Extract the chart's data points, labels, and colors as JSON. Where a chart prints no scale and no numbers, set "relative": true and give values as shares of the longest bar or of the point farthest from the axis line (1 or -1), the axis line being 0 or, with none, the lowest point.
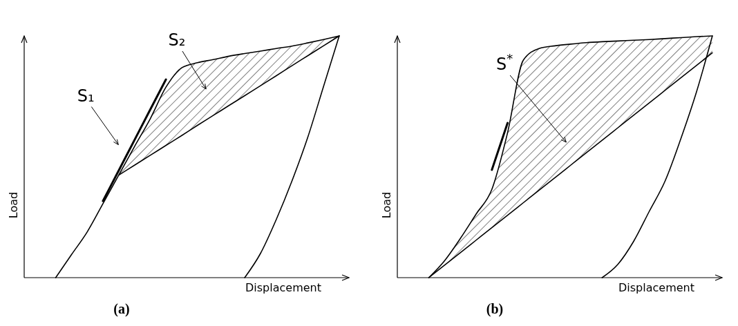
{
  "chart_data": [
    {
      "type": "line",
      "relative": true,
      "title": "(a)",
      "xlabel": "Displacement",
      "ylabel": "Load",
      "annotations": [
        "S₁",
        "S₂"
      ],
      "categories": [
        null,
        null,
        null,
        null,
        null,
        null,
        null,
        null,
        null,
        null,
        null,
        null,
        null,
        null,
        null,
        null,
        null,
        null,
        null,
        null,
        null
      ],
      "series": [
        {
          "color": "#000000",
          "values": [
            null,
            null,
            0,
            0.095,
            0.189,
            0.306,
            0.424,
            0.542,
            0.657,
            0.788,
            0.868,
            0.889,
            0.902,
            0.916,
            0.927,
            0.937,
            0.948,
            0.958,
            0.971,
            0.985,
            1
          ]
        },
        {
          "color": "#000000",
          "values": [
            null,
            null,
            null,
            null,
            null,
            null,
            null,
            null,
            null,
            null,
            null,
            null,
            null,
            null,
            0,
            0.1,
            0.24,
            0.4,
            0.58,
            0.79,
            1
          ]
        },
        {
          "color": "#000000",
          "values": [
            null,
            null,
            null,
            null,
            null,
            0.317,
            0.443,
            0.569,
            0.695,
            0.82,
            null,
            null,
            null,
            null,
            null,
            null,
            null,
            null,
            null,
            null,
            null
          ]
        },
        {
          "color": "#000000",
          "values": [
            null,
            null,
            null,
            null,
            null,
            null,
            0.424,
            0.465,
            0.506,
            0.547,
            0.588,
            0.63,
            0.671,
            0.712,
            0.753,
            0.794,
            0.835,
            0.877,
            0.918,
            0.959,
            1
          ],
          "lower": [
            null,
            null,
            null,
            null,
            null,
            null,
            0.424,
            0.465,
            0.506,
            0.547,
            0.588,
            0.63,
            0.671,
            0.712,
            0.753,
            0.794,
            0.835,
            0.877,
            0.918,
            0.959,
            1
          ],
          "upper": [
            null,
            null,
            null,
            null,
            null,
            null,
            0.424,
            0.542,
            0.657,
            0.788,
            0.868,
            0.889,
            0.902,
            0.916,
            0.927,
            0.937,
            0.948,
            0.958,
            0.971,
            0.985,
            1
          ]
        }
      ]
    },
    {
      "type": "line",
      "relative": true,
      "title": "(b)",
      "xlabel": "Displacement",
      "ylabel": "Load",
      "annotations": [
        "S$^{*}$"
      ],
      "categories": [
        null,
        null,
        null,
        null,
        null,
        null,
        null,
        null,
        null,
        null,
        null,
        null,
        null,
        null,
        null,
        null,
        null,
        null,
        null,
        null,
        null
      ],
      "series": [
        {
          "color": "#000000",
          "values": [
            null,
            null,
            0,
            0.07,
            0.162,
            0.263,
            0.365,
            0.6,
            0.9,
            0.948,
            0.959,
            0.966,
            0.972,
            0.976,
            0.979,
            0.982,
            0.985,
            0.989,
            0.993,
            0.997,
            1
          ]
        },
        {
          "color": "#000000",
          "values": [
            null,
            null,
            null,
            null,
            null,
            null,
            null,
            null,
            null,
            null,
            null,
            null,
            null,
            0,
            0.055,
            0.15,
            0.275,
            0.4,
            0.575,
            0.77,
            1
          ]
        },
        {
          "color": "#000000",
          "values": [
            null,
            null,
            null,
            null,
            null,
            null,
            0.446,
            0.64,
            null,
            null,
            null,
            null,
            null,
            null,
            null,
            null,
            null,
            null,
            null,
            null,
            null
          ]
        },
        {
          "color": "#000000",
          "values": [
            null,
            null,
            0,
            0.052,
            0.103,
            0.155,
            0.207,
            0.258,
            0.31,
            0.362,
            0.413,
            0.465,
            0.517,
            0.568,
            0.62,
            0.672,
            0.723,
            0.775,
            0.827,
            0.878,
            0.93
          ],
          "lower": [
            null,
            null,
            0,
            0.052,
            0.103,
            0.155,
            0.207,
            0.258,
            0.31,
            0.362,
            0.413,
            0.465,
            0.517,
            0.568,
            0.62,
            0.672,
            0.723,
            0.775,
            0.827,
            0.878,
            0.93
          ],
          "upper": [
            null,
            null,
            0,
            0.07,
            0.162,
            0.263,
            0.365,
            0.6,
            0.9,
            0.948,
            0.959,
            0.966,
            0.972,
            0.976,
            0.979,
            0.982,
            0.985,
            0.989,
            0.993,
            0.997,
            1
          ]
        }
      ]
    }
  ]
}
